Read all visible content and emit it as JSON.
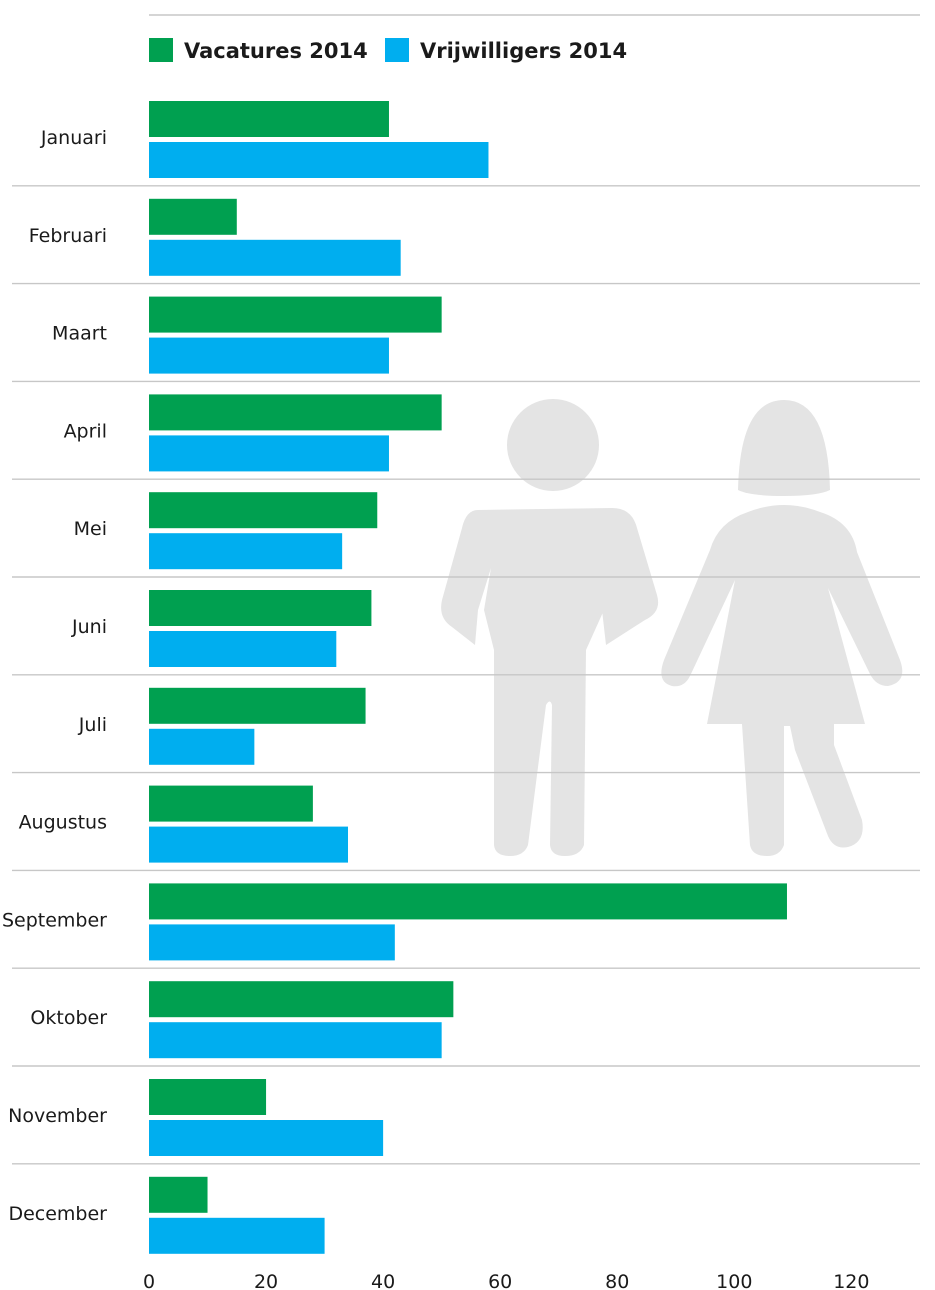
{
  "chart_data": {
    "type": "bar",
    "orientation": "horizontal",
    "categories": [
      "Januari",
      "Februari",
      "Maart",
      "April",
      "Mei",
      "Juni",
      "Juli",
      "Augustus",
      "September",
      "Oktober",
      "November",
      "December"
    ],
    "series": [
      {
        "name": "Vacatures 2014",
        "color": "#00a050",
        "values": [
          41,
          15,
          50,
          50,
          39,
          38,
          37,
          28,
          109,
          52,
          20,
          10
        ]
      },
      {
        "name": "Vrijwilligers 2014",
        "color": "#00aeef",
        "values": [
          58,
          43,
          41,
          41,
          33,
          32,
          18,
          34,
          42,
          50,
          40,
          30
        ]
      }
    ],
    "xticks": [
      0,
      20,
      40,
      60,
      80,
      100,
      120
    ],
    "xlim": [
      0,
      120
    ],
    "legend": "top-left",
    "grid": false,
    "background_illustration": "person-silhouettes-icon"
  }
}
